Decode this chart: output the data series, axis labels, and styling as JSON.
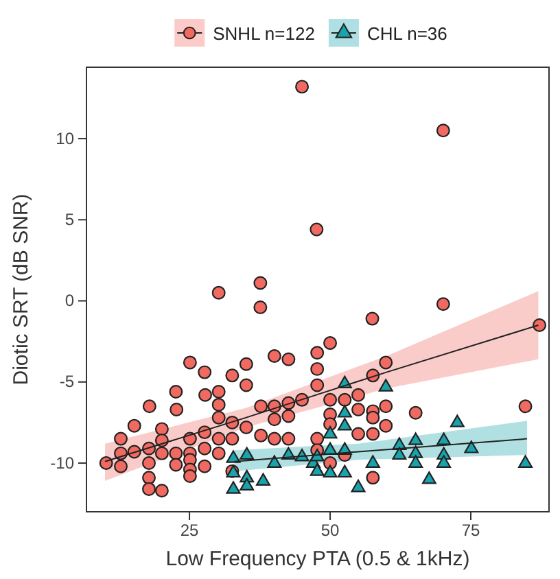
{
  "chart_data": {
    "type": "scatter",
    "xlabel": "Low Frequency PTA (0.5 & 1kHz)",
    "ylabel": "Diotic SRT (dB SNR)",
    "xlim": [
      6.7,
      88.9
    ],
    "ylim": [
      -13,
      14.4
    ],
    "xticks": [
      25,
      50,
      75
    ],
    "yticks": [
      -10,
      -5,
      0,
      5,
      10
    ],
    "grid": false,
    "legend": "top",
    "series": [
      {
        "name": "SNHL n=122",
        "type": "scatter",
        "marker": "circle",
        "color": "#f06a62",
        "x": [
          45.0,
          70.1,
          47.6,
          30.2,
          37.6,
          37.6,
          70.1,
          57.5,
          87.2,
          25.1,
          27.7,
          32.6,
          35.1,
          40.1,
          42.6,
          35.1,
          22.6,
          27.8,
          30.2,
          17.9,
          22.7,
          30.2,
          30.2,
          15.2,
          20.1,
          32.6,
          37.7,
          40.1,
          42.6,
          45.0,
          40.1,
          42.6,
          12.8,
          20.1,
          25.1,
          27.7,
          30.2,
          32.6,
          35.1,
          37.7,
          40.1,
          42.6,
          15.2,
          12.8,
          17.8,
          20.1,
          22.6,
          25.1,
          27.7,
          30.2,
          10.2,
          12.8,
          17.8,
          22.6,
          25.1,
          27.7,
          25.1,
          25.1,
          17.8,
          17.8,
          20.1,
          32.6,
          47.7,
          50.0,
          47.7,
          47.7,
          59.9,
          57.6,
          50.0,
          52.6,
          55.0,
          50.0,
          55.0,
          57.6,
          59.9,
          57.6,
          59.9,
          65.2,
          84.7,
          47.7,
          50.0,
          55.0,
          57.6,
          57.6,
          47.7,
          52.6,
          50.0
        ],
        "values": [
          13.2,
          10.5,
          4.4,
          0.5,
          1.1,
          -0.4,
          -0.2,
          -1.1,
          -1.5,
          -3.8,
          -4.4,
          -4.6,
          -3.9,
          -3.4,
          -3.6,
          -5.2,
          -5.6,
          -5.8,
          -5.6,
          -6.5,
          -6.7,
          -6.4,
          -7.2,
          -7.7,
          -7.9,
          -7.5,
          -6.5,
          -6.5,
          -6.3,
          -6.1,
          -7.3,
          -7.1,
          -8.5,
          -8.6,
          -8.5,
          -8.1,
          -8.5,
          -8.5,
          -7.8,
          -8.3,
          -8.5,
          -8.5,
          -9.3,
          -9.4,
          -9.1,
          -9.4,
          -9.4,
          -9.4,
          -9.1,
          -9.4,
          -10.0,
          -10.2,
          -10.0,
          -10.1,
          -9.8,
          -10.2,
          -10.4,
          -10.8,
          -10.9,
          -11.6,
          -11.7,
          -10.5,
          -3.2,
          -2.6,
          -4.2,
          -5.2,
          -3.8,
          -4.6,
          -6.1,
          -6.1,
          -5.8,
          -7.0,
          -6.7,
          -6.8,
          -6.5,
          -7.2,
          -7.7,
          -6.9,
          -6.5,
          -8.5,
          -7.6,
          -8.2,
          -8.2,
          -10.9,
          -9.2,
          -9.5,
          -10.0
        ]
      },
      {
        "type": "line",
        "color": "#222222",
        "x": [
          10,
          35,
          60,
          87
        ],
        "values": [
          -9.9,
          -7.2,
          -4.4,
          -1.5
        ],
        "lower": [
          -11.1,
          -7.8,
          -5.4,
          -3.6
        ],
        "upper": [
          -8.8,
          -6.6,
          -3.4,
          0.6
        ]
      },
      {
        "name": "CHL n=36",
        "type": "scatter",
        "marker": "triangle",
        "color": "#1aa3ac",
        "x": [
          32.8,
          35.2,
          32.8,
          35.2,
          38.1,
          32.8,
          35.2,
          42.6,
          45.0,
          40.1,
          47.0,
          59.9,
          52.6,
          52.6,
          52.6,
          50.0,
          50.0,
          52.6,
          47.7,
          47.7,
          50.0,
          52.6,
          55.0,
          57.6,
          62.3,
          62.3,
          65.2,
          65.2,
          65.2,
          67.6,
          70.2,
          70.2,
          70.2,
          72.6,
          75.1,
          84.7
        ],
        "values": [
          -9.6,
          -9.4,
          -10.5,
          -10.8,
          -11.0,
          -11.5,
          -11.3,
          -9.4,
          -9.5,
          -9.9,
          -9.9,
          -5.2,
          -5.0,
          -6.8,
          -7.6,
          -8.1,
          -9.1,
          -9.1,
          -9.5,
          -10.4,
          -10.5,
          -10.5,
          -11.4,
          -9.9,
          -8.8,
          -9.4,
          -8.5,
          -9.3,
          -9.9,
          -10.9,
          -8.5,
          -9.4,
          -9.9,
          -7.4,
          -9.0,
          -9.9
        ]
      },
      {
        "type": "line",
        "color": "#222222",
        "x": [
          33,
          55,
          85
        ],
        "values": [
          -9.9,
          -9.3,
          -8.5
        ],
        "lower": [
          -10.5,
          -9.8,
          -9.5
        ],
        "upper": [
          -9.2,
          -8.8,
          -7.4
        ]
      }
    ]
  }
}
